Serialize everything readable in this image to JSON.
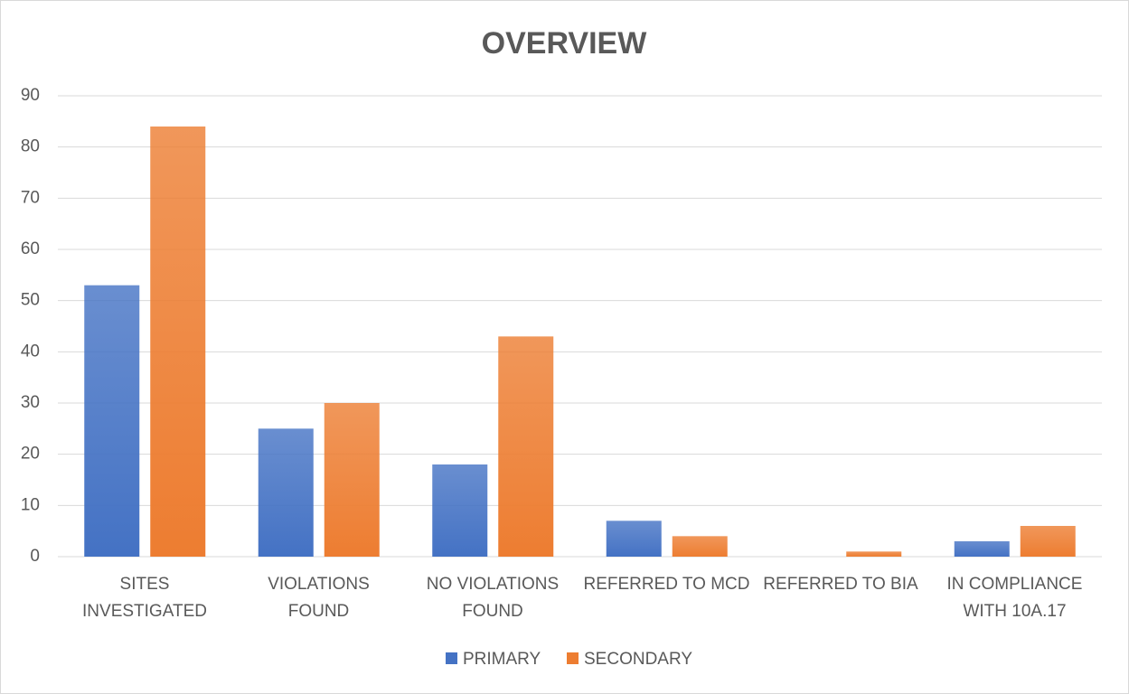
{
  "chart_data": {
    "type": "bar",
    "title": "OVERVIEW",
    "categories": [
      "SITES\nINVESTIGATED",
      "VIOLATIONS\nFOUND",
      "NO VIOLATIONS\nFOUND",
      "REFERRED TO MCD",
      "REFERRED TO BIA",
      "IN COMPLIANCE\nWITH 10A.17"
    ],
    "series": [
      {
        "name": "PRIMARY",
        "color": "#4472c4",
        "values": [
          53,
          25,
          18,
          7,
          0,
          3
        ]
      },
      {
        "name": "SECONDARY",
        "color": "#ed7d31",
        "values": [
          84,
          30,
          43,
          4,
          1,
          6
        ]
      }
    ],
    "ylim": [
      0,
      90
    ],
    "yticks": [
      0,
      10,
      20,
      30,
      40,
      50,
      60,
      70,
      80,
      90
    ],
    "grid": true,
    "legend": "bottom"
  }
}
